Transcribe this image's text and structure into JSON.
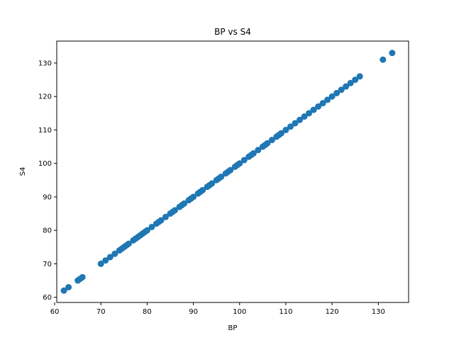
{
  "chart_data": {
    "type": "scatter",
    "title": "BP vs S4",
    "xlabel": "BP",
    "ylabel": "S4",
    "xlim": [
      60.45,
      136.55
    ],
    "ylim": [
      58.45,
      136.55
    ],
    "xticks": [
      60,
      70,
      80,
      90,
      100,
      110,
      120,
      130
    ],
    "yticks": [
      60,
      70,
      80,
      90,
      100,
      110,
      120,
      130
    ],
    "grid": false,
    "color": "#1f77b4",
    "x": [
      62,
      63,
      65,
      65.5,
      66,
      70,
      71,
      72,
      73,
      74,
      74.5,
      75,
      75.5,
      76,
      77,
      77.5,
      78,
      78.5,
      79,
      79.5,
      80,
      81,
      82,
      82.5,
      83,
      84,
      85,
      85.5,
      86,
      87,
      87.5,
      88,
      89,
      89.5,
      90,
      91,
      91.5,
      92,
      93,
      93.5,
      94,
      95,
      95.5,
      96,
      97,
      97.5,
      98,
      99,
      99.5,
      100,
      101,
      102,
      102.5,
      103,
      104,
      105,
      105.5,
      106,
      107,
      108,
      108.5,
      109,
      110,
      111,
      112,
      113,
      114,
      115,
      116,
      117,
      118,
      119,
      120,
      121,
      122,
      123,
      124,
      125,
      126,
      131,
      133
    ],
    "y": [
      62,
      63,
      65,
      65.5,
      66,
      70,
      71,
      72,
      73,
      74,
      74.5,
      75,
      75.5,
      76,
      77,
      77.5,
      78,
      78.5,
      79,
      79.5,
      80,
      81,
      82,
      82.5,
      83,
      84,
      85,
      85.5,
      86,
      87,
      87.5,
      88,
      89,
      89.5,
      90,
      91,
      91.5,
      92,
      93,
      93.5,
      94,
      95,
      95.5,
      96,
      97,
      97.5,
      98,
      99,
      99.5,
      100,
      101,
      102,
      102.5,
      103,
      104,
      105,
      105.5,
      106,
      107,
      108,
      108.5,
      109,
      110,
      111,
      112,
      113,
      114,
      115,
      116,
      117,
      118,
      119,
      120,
      121,
      122,
      123,
      124,
      125,
      126,
      131,
      133
    ]
  }
}
